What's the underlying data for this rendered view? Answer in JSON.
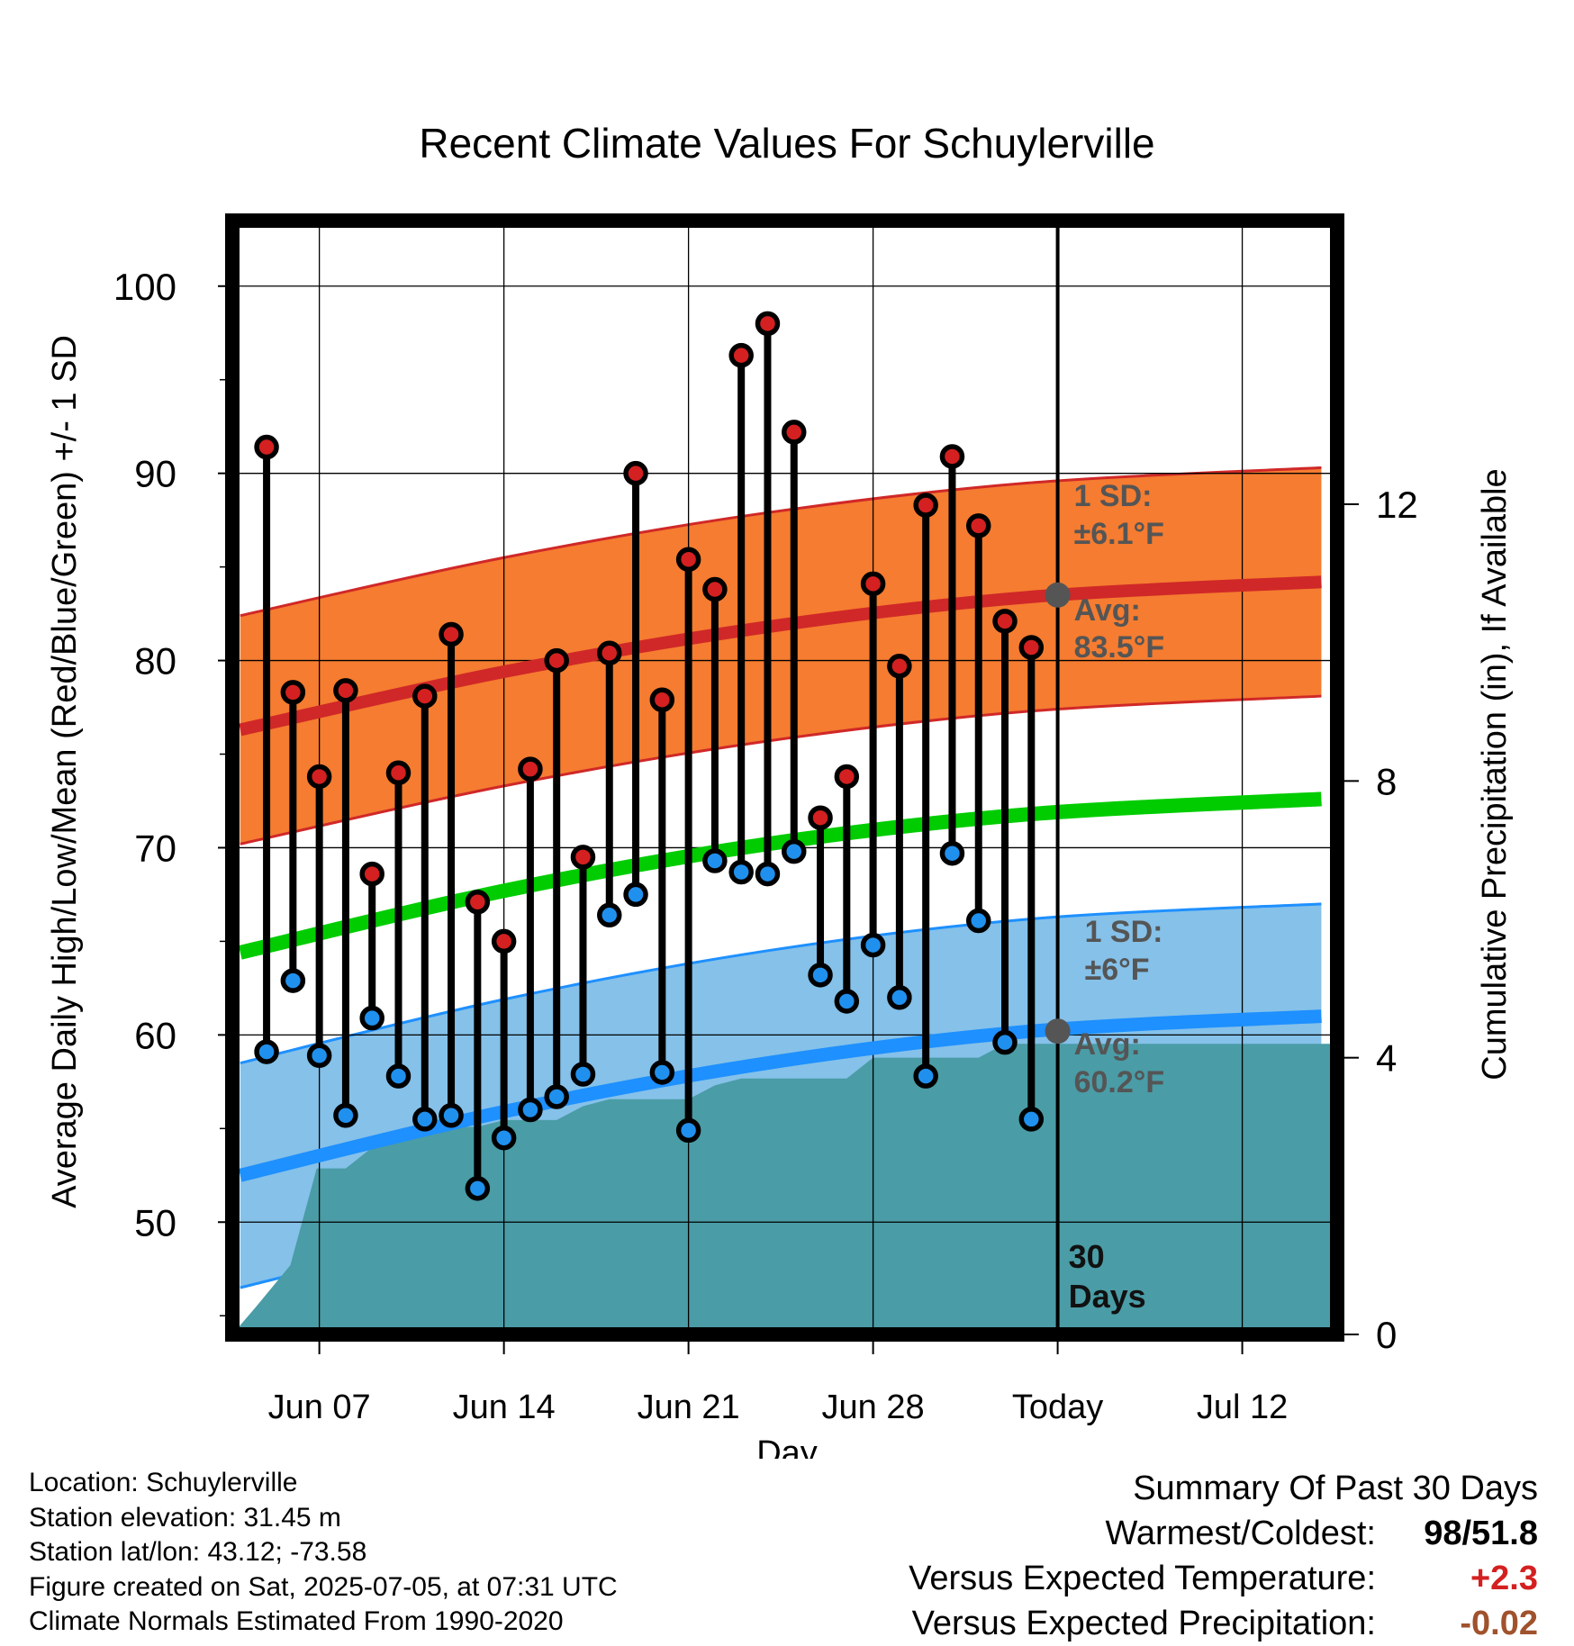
{
  "chart_data": {
    "type": "line",
    "title": "Recent Climate Values For Schuylerville",
    "xlabel": "Day",
    "ylabel": "Average Daily High/Low/Mean (Red/Blue/Green) +/- 1 SD",
    "y2label": "Cumulative Precipitation (in), If Available",
    "x_tick_labels": [
      {
        "day": "2025-06-07",
        "label": "Jun 07"
      },
      {
        "day": "2025-06-14",
        "label": "Jun 14"
      },
      {
        "day": "2025-06-21",
        "label": "Jun 21"
      },
      {
        "day": "2025-06-28",
        "label": "Jun 28"
      },
      {
        "day": "2025-07-05",
        "label": "Today"
      },
      {
        "day": "2025-07-12",
        "label": "Jul 12"
      }
    ],
    "xlim": [
      "2025-06-03.7",
      "2025-07-15.6"
    ],
    "ylim": [
      44.0,
      103.5
    ],
    "y_ticks": [
      50,
      60,
      70,
      80,
      90,
      100
    ],
    "y2lim": [
      0,
      16.1
    ],
    "y2_ticks": [
      0,
      4,
      8,
      12
    ],
    "grid": true,
    "today": "2025-07-05",
    "days": [
      "2025-06-05",
      "2025-06-06",
      "2025-06-07",
      "2025-06-08",
      "2025-06-09",
      "2025-06-10",
      "2025-06-11",
      "2025-06-12",
      "2025-06-13",
      "2025-06-14",
      "2025-06-15",
      "2025-06-16",
      "2025-06-17",
      "2025-06-18",
      "2025-06-19",
      "2025-06-20",
      "2025-06-21",
      "2025-06-22",
      "2025-06-23",
      "2025-06-24",
      "2025-06-25",
      "2025-06-26",
      "2025-06-27",
      "2025-06-28",
      "2025-06-29",
      "2025-06-30",
      "2025-07-01",
      "2025-07-02",
      "2025-07-03",
      "2025-07-04"
    ],
    "daily_high": [
      91.4,
      78.3,
      73.8,
      78.4,
      68.6,
      74.0,
      78.1,
      81.4,
      67.1,
      65.0,
      74.2,
      80.0,
      69.5,
      80.4,
      90.0,
      77.9,
      85.4,
      83.8,
      96.3,
      98.0,
      92.2,
      71.6,
      73.8,
      84.1,
      79.7,
      88.3,
      90.9,
      87.2,
      82.1,
      80.7
    ],
    "daily_low": [
      59.1,
      62.9,
      58.9,
      55.7,
      60.9,
      57.8,
      55.5,
      55.7,
      51.8,
      54.5,
      56.0,
      56.7,
      57.9,
      66.4,
      67.5,
      58.0,
      54.9,
      69.3,
      68.7,
      68.6,
      69.8,
      63.2,
      61.8,
      64.8,
      62.0,
      57.8,
      69.7,
      66.1,
      59.6,
      55.5
    ],
    "normals": {
      "days": [
        "2025-06-04",
        "2025-06-14",
        "2025-06-24",
        "2025-07-04",
        "2025-07-15"
      ],
      "avg_high": [
        76.3,
        79.4,
        81.8,
        83.4,
        84.2
      ],
      "avg_low": [
        52.5,
        55.9,
        58.5,
        60.2,
        61.0
      ],
      "avg_mean": [
        64.4,
        67.7,
        70.2,
        71.8,
        72.6
      ],
      "high_sd": 6.1,
      "low_sd": 6.0
    },
    "cumulative_precip": {
      "days": [
        "2025-06-03.7",
        "2025-06-04.6",
        "2025-06-05.9",
        "2025-06-06.9",
        "2025-06-08.0",
        "2025-06-09.0",
        "2025-06-10.0",
        "2025-06-10.9",
        "2025-06-13.0",
        "2025-06-14.0",
        "2025-06-16.0",
        "2025-06-17.0",
        "2025-06-18.0",
        "2025-06-19.0",
        "2025-06-21.0",
        "2025-06-22.0",
        "2025-06-23.0",
        "2025-06-24.0",
        "2025-06-27.0",
        "2025-06-28.0",
        "2025-07-02.0",
        "2025-07-03.0",
        "2025-07-15.6"
      ],
      "values": [
        0.0,
        0.4,
        1.0,
        2.4,
        2.4,
        2.7,
        2.9,
        3.0,
        3.0,
        3.1,
        3.1,
        3.3,
        3.4,
        3.4,
        3.4,
        3.6,
        3.7,
        3.7,
        3.7,
        4.0,
        4.0,
        4.2,
        4.2
      ]
    },
    "annotations": {
      "high_sd_label": "1 SD:",
      "high_sd_value": "±6.1°F",
      "high_avg_label": "Avg:",
      "high_avg_value": "83.5°F",
      "low_sd_label": "1 SD:",
      "low_sd_value": "±6°F",
      "low_avg_label": "Avg:",
      "low_avg_value": "60.2°F",
      "period_number": "30",
      "period_unit": "Days"
    },
    "colors": {
      "high_band": "#f57c30",
      "high_line": "#d02828",
      "low_band": "#85c1e9",
      "low_line": "#1e90ff",
      "mean_line": "#00cc00",
      "precip": "#4a9ca6",
      "high_marker": "#d42020",
      "low_marker": "#2090ee",
      "annotation": "#555555"
    }
  },
  "station_info": [
    "Location: Schuylerville",
    "Station elevation: 31.45 m",
    "Station lat/lon: 43.12; -73.58",
    "Figure created on Sat, 2025-07-05, at 07:31 UTC",
    "Climate Normals Estimated From 1990-2020"
  ],
  "summary": {
    "title": "Summary Of Past 30 Days",
    "warm_cold_label": "Warmest/Coldest:",
    "warmest": "98",
    "separator": "/",
    "coldest": "51.8",
    "temp_label": "Versus Expected Temperature:",
    "temp_value": "+2.3",
    "temp_color": "#d42020",
    "precip_label": "Versus Expected Precipitation:",
    "precip_value": "-0.02",
    "precip_color": "#a0522d"
  }
}
